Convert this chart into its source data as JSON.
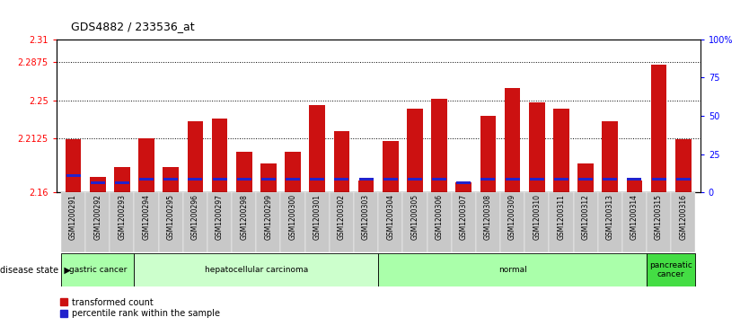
{
  "title": "GDS4882 / 233536_at",
  "samples": [
    "GSM1200291",
    "GSM1200292",
    "GSM1200293",
    "GSM1200294",
    "GSM1200295",
    "GSM1200296",
    "GSM1200297",
    "GSM1200298",
    "GSM1200299",
    "GSM1200300",
    "GSM1200301",
    "GSM1200302",
    "GSM1200303",
    "GSM1200304",
    "GSM1200305",
    "GSM1200306",
    "GSM1200307",
    "GSM1200308",
    "GSM1200309",
    "GSM1200310",
    "GSM1200311",
    "GSM1200312",
    "GSM1200313",
    "GSM1200314",
    "GSM1200315",
    "GSM1200316"
  ],
  "transformed_count": [
    2.212,
    2.175,
    2.185,
    2.213,
    2.185,
    2.23,
    2.232,
    2.2,
    2.188,
    2.2,
    2.245,
    2.22,
    2.172,
    2.21,
    2.242,
    2.252,
    2.17,
    2.235,
    2.262,
    2.248,
    2.242,
    2.188,
    2.23,
    2.172,
    2.285,
    2.212
  ],
  "blue_positions": [
    2.1755,
    2.1685,
    2.1685,
    2.172,
    2.172,
    2.172,
    2.172,
    2.172,
    2.172,
    2.172,
    2.172,
    2.172,
    2.172,
    2.172,
    2.172,
    2.172,
    2.168,
    2.172,
    2.172,
    2.172,
    2.172,
    2.172,
    2.172,
    2.172,
    2.172,
    2.172
  ],
  "disease_groups": [
    {
      "label": "gastric cancer",
      "start": 0,
      "end": 3,
      "color": "#aaffaa"
    },
    {
      "label": "hepatocellular carcinoma",
      "start": 3,
      "end": 13,
      "color": "#ccffcc"
    },
    {
      "label": "normal",
      "start": 13,
      "end": 24,
      "color": "#aaffaa"
    },
    {
      "label": "pancreatic\ncancer",
      "start": 24,
      "end": 26,
      "color": "#44dd44"
    }
  ],
  "ylim_left": [
    2.16,
    2.31
  ],
  "ylim_right": [
    0,
    100
  ],
  "yticks_left": [
    2.16,
    2.2125,
    2.25,
    2.2875,
    2.31
  ],
  "yticks_right": [
    0,
    25,
    50,
    75,
    100
  ],
  "ytick_labels_left": [
    "2.16",
    "2.2125",
    "2.25",
    "2.2875",
    "2.31"
  ],
  "ytick_labels_right": [
    "0",
    "25",
    "50",
    "75",
    "100%"
  ],
  "bar_color": "#cc1111",
  "blue_color": "#2222cc",
  "bar_width": 0.65,
  "base_value": 2.16,
  "grid_lines": [
    2.2125,
    2.25,
    2.2875
  ],
  "xtick_bg_color": "#cccccc",
  "fig_bg": "#ffffff"
}
